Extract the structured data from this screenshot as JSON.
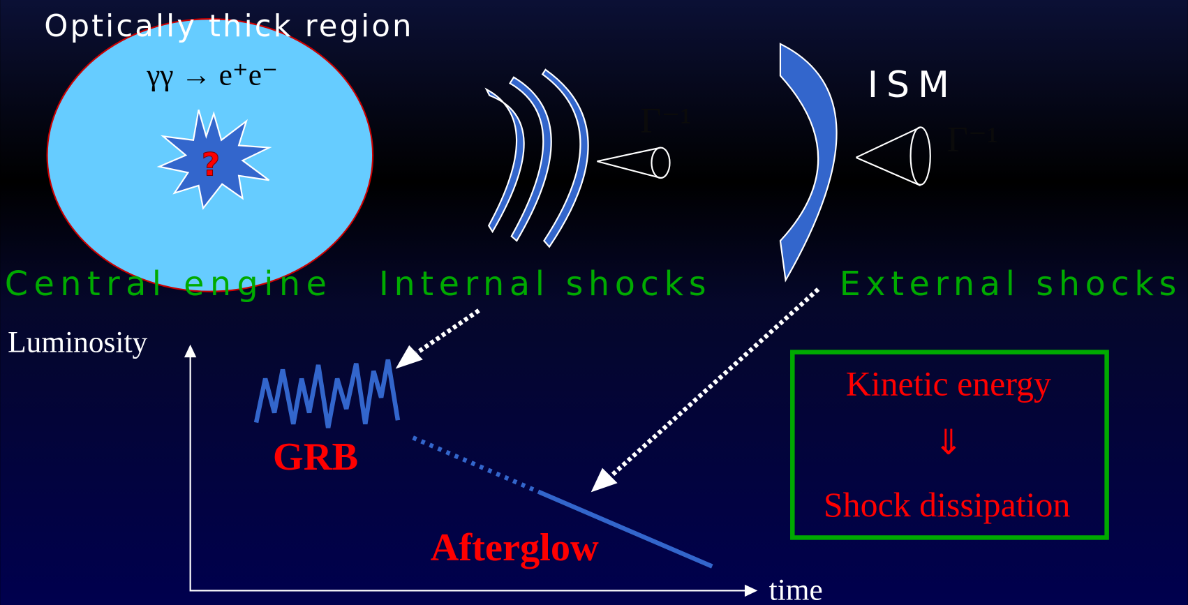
{
  "labels": {
    "region": "Optically thick region",
    "reaction": "γγ → e⁺e⁻",
    "unknown": "?",
    "gamma_internal": "Γ⁻¹",
    "gamma_external": "Γ⁻¹",
    "ism": "ISM",
    "central_engine": "Central engine",
    "internal_shocks": "Internal shocks",
    "external_shocks": "External shocks",
    "y_axis": "Luminosity",
    "x_axis": "time",
    "grb": "GRB",
    "afterglow": "Afterglow"
  },
  "box": {
    "line1": "Kinetic energy",
    "arrow": "⇓",
    "line2": "Shock dissipation"
  }
}
